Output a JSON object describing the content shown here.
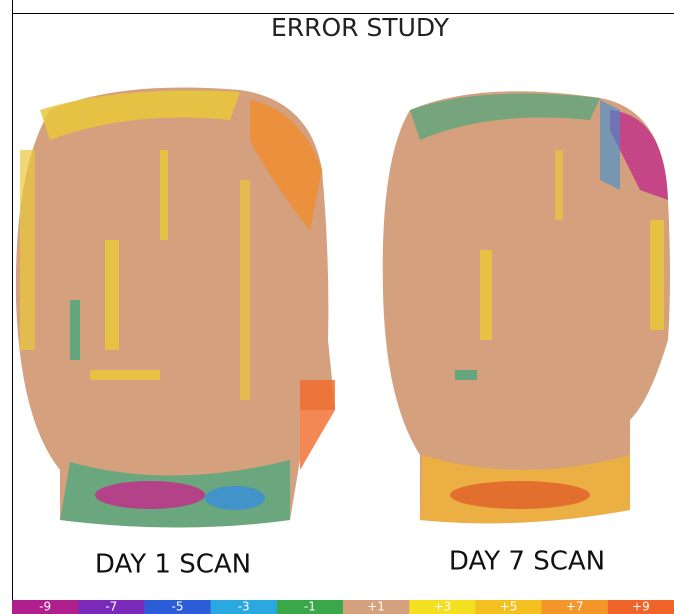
{
  "title": "ERROR STUDY",
  "panels": [
    {
      "label": "DAY 1 SCAN"
    },
    {
      "label": "DAY 7 SCAN"
    }
  ],
  "scale": {
    "labels": [
      "-9",
      "-7",
      "-5",
      "-3",
      "-1",
      "+1",
      "+3",
      "+5",
      "+7",
      "+9"
    ]
  }
}
